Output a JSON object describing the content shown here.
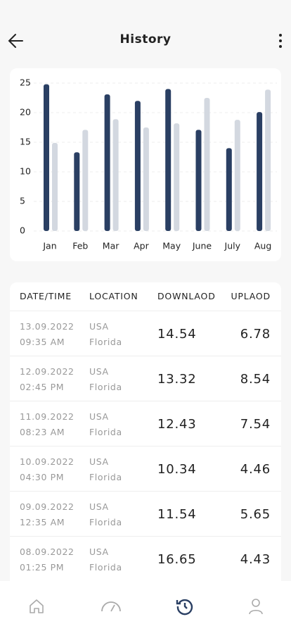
{
  "header": {
    "title": "History"
  },
  "chart_data": {
    "type": "bar",
    "categories": [
      "Jan",
      "Feb",
      "Mar",
      "Apr",
      "May",
      "June",
      "July",
      "Aug"
    ],
    "series": [
      {
        "color": "#2a3f63",
        "values": [
          24.8,
          13.3,
          23.1,
          22.0,
          24.0,
          17.1,
          14.0,
          20.1
        ]
      },
      {
        "color": "#d3d8e0",
        "values": [
          14.9,
          17.1,
          18.9,
          17.5,
          18.2,
          22.5,
          18.8,
          23.9
        ]
      }
    ],
    "ylim": [
      0,
      25
    ],
    "yticks": [
      0,
      5,
      10,
      15,
      20,
      25
    ],
    "grid": true
  },
  "table": {
    "columns": [
      "DATE/TIME",
      "LOCATION",
      "DOWNLAOD",
      "UPLAOD"
    ],
    "rows": [
      [
        "13.09.2022",
        "09:35 AM",
        "USA",
        "Florida",
        "14.54",
        "6.78"
      ],
      [
        "12.09.2022",
        "02:45 PM",
        "USA",
        "Florida",
        "13.32",
        "8.54"
      ],
      [
        "11.09.2022",
        "08:23 AM",
        "USA",
        "Florida",
        "12.43",
        "7.54"
      ],
      [
        "10.09.2022",
        "04:30 PM",
        "USA",
        "Florida",
        "10.34",
        "4.46"
      ],
      [
        "09.09.2022",
        "12:35 AM",
        "USA",
        "Florida",
        "11.54",
        "5.65"
      ],
      [
        "08.09.2022",
        "01:25 PM",
        "USA",
        "Florida",
        "16.65",
        "4.43"
      ]
    ]
  }
}
